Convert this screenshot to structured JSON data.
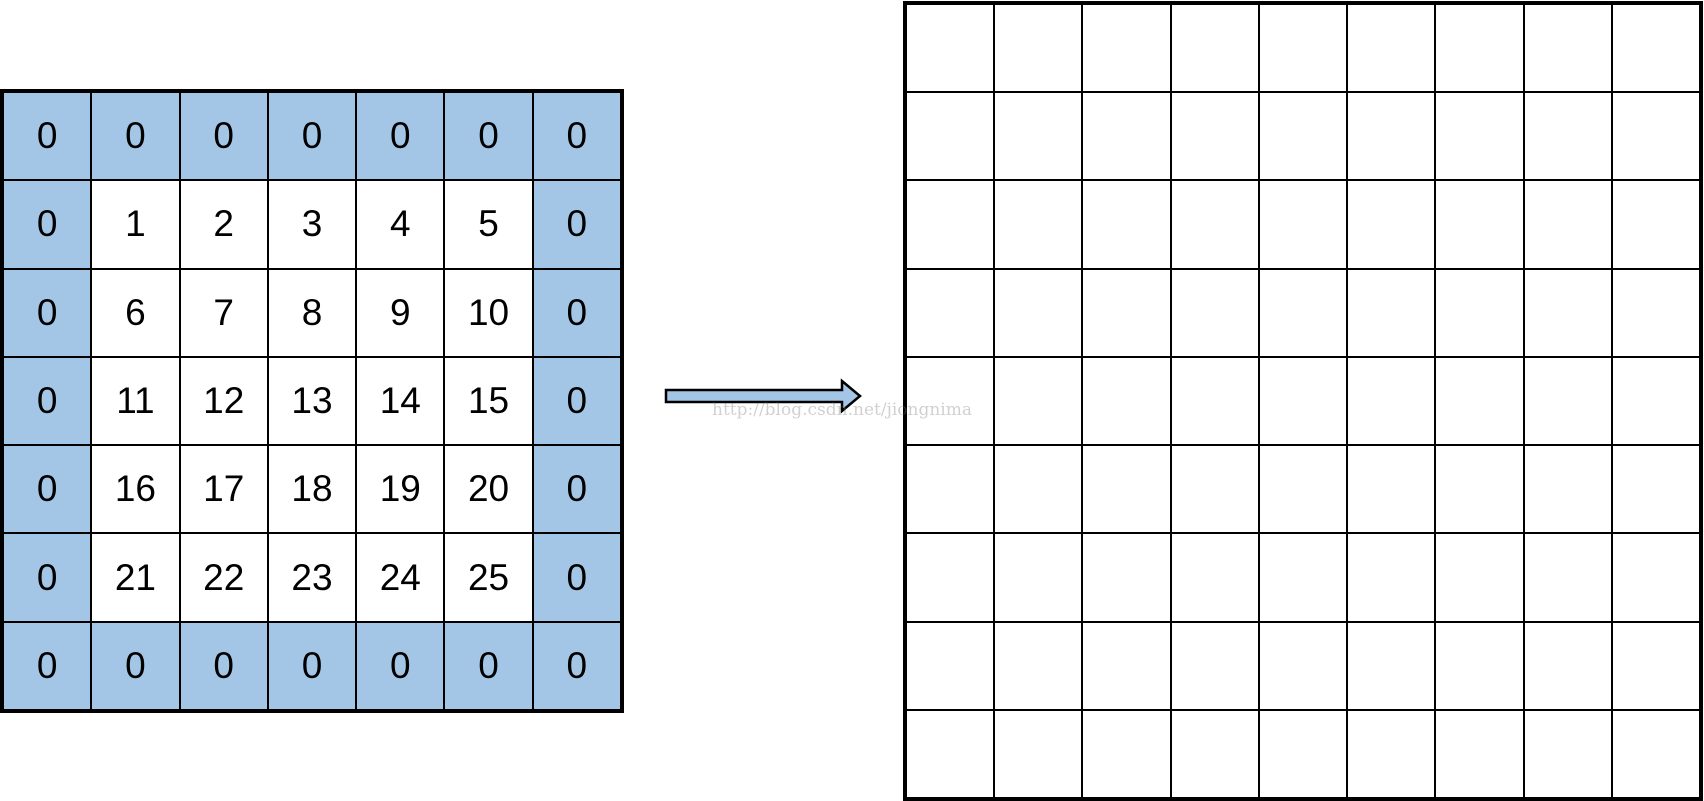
{
  "input_grid": {
    "rows": [
      [
        "0",
        "0",
        "0",
        "0",
        "0",
        "0",
        "0"
      ],
      [
        "0",
        "1",
        "2",
        "3",
        "4",
        "5",
        "0"
      ],
      [
        "0",
        "6",
        "7",
        "8",
        "9",
        "10",
        "0"
      ],
      [
        "0",
        "11",
        "12",
        "13",
        "14",
        "15",
        "0"
      ],
      [
        "0",
        "16",
        "17",
        "18",
        "19",
        "20",
        "0"
      ],
      [
        "0",
        "21",
        "22",
        "23",
        "24",
        "25",
        "0"
      ],
      [
        "0",
        "0",
        "0",
        "0",
        "0",
        "0",
        "0"
      ]
    ],
    "padding_color": "#a3c6e7",
    "value_color": "#ffffff"
  },
  "output_grid": {
    "rows": 9,
    "cols": 9,
    "fill_color": "#ffffff"
  },
  "arrow": {
    "icon": "right-arrow-icon",
    "fill_color": "#a3c6e7"
  },
  "watermark": "http://blog.csdn.net/jiongnima"
}
